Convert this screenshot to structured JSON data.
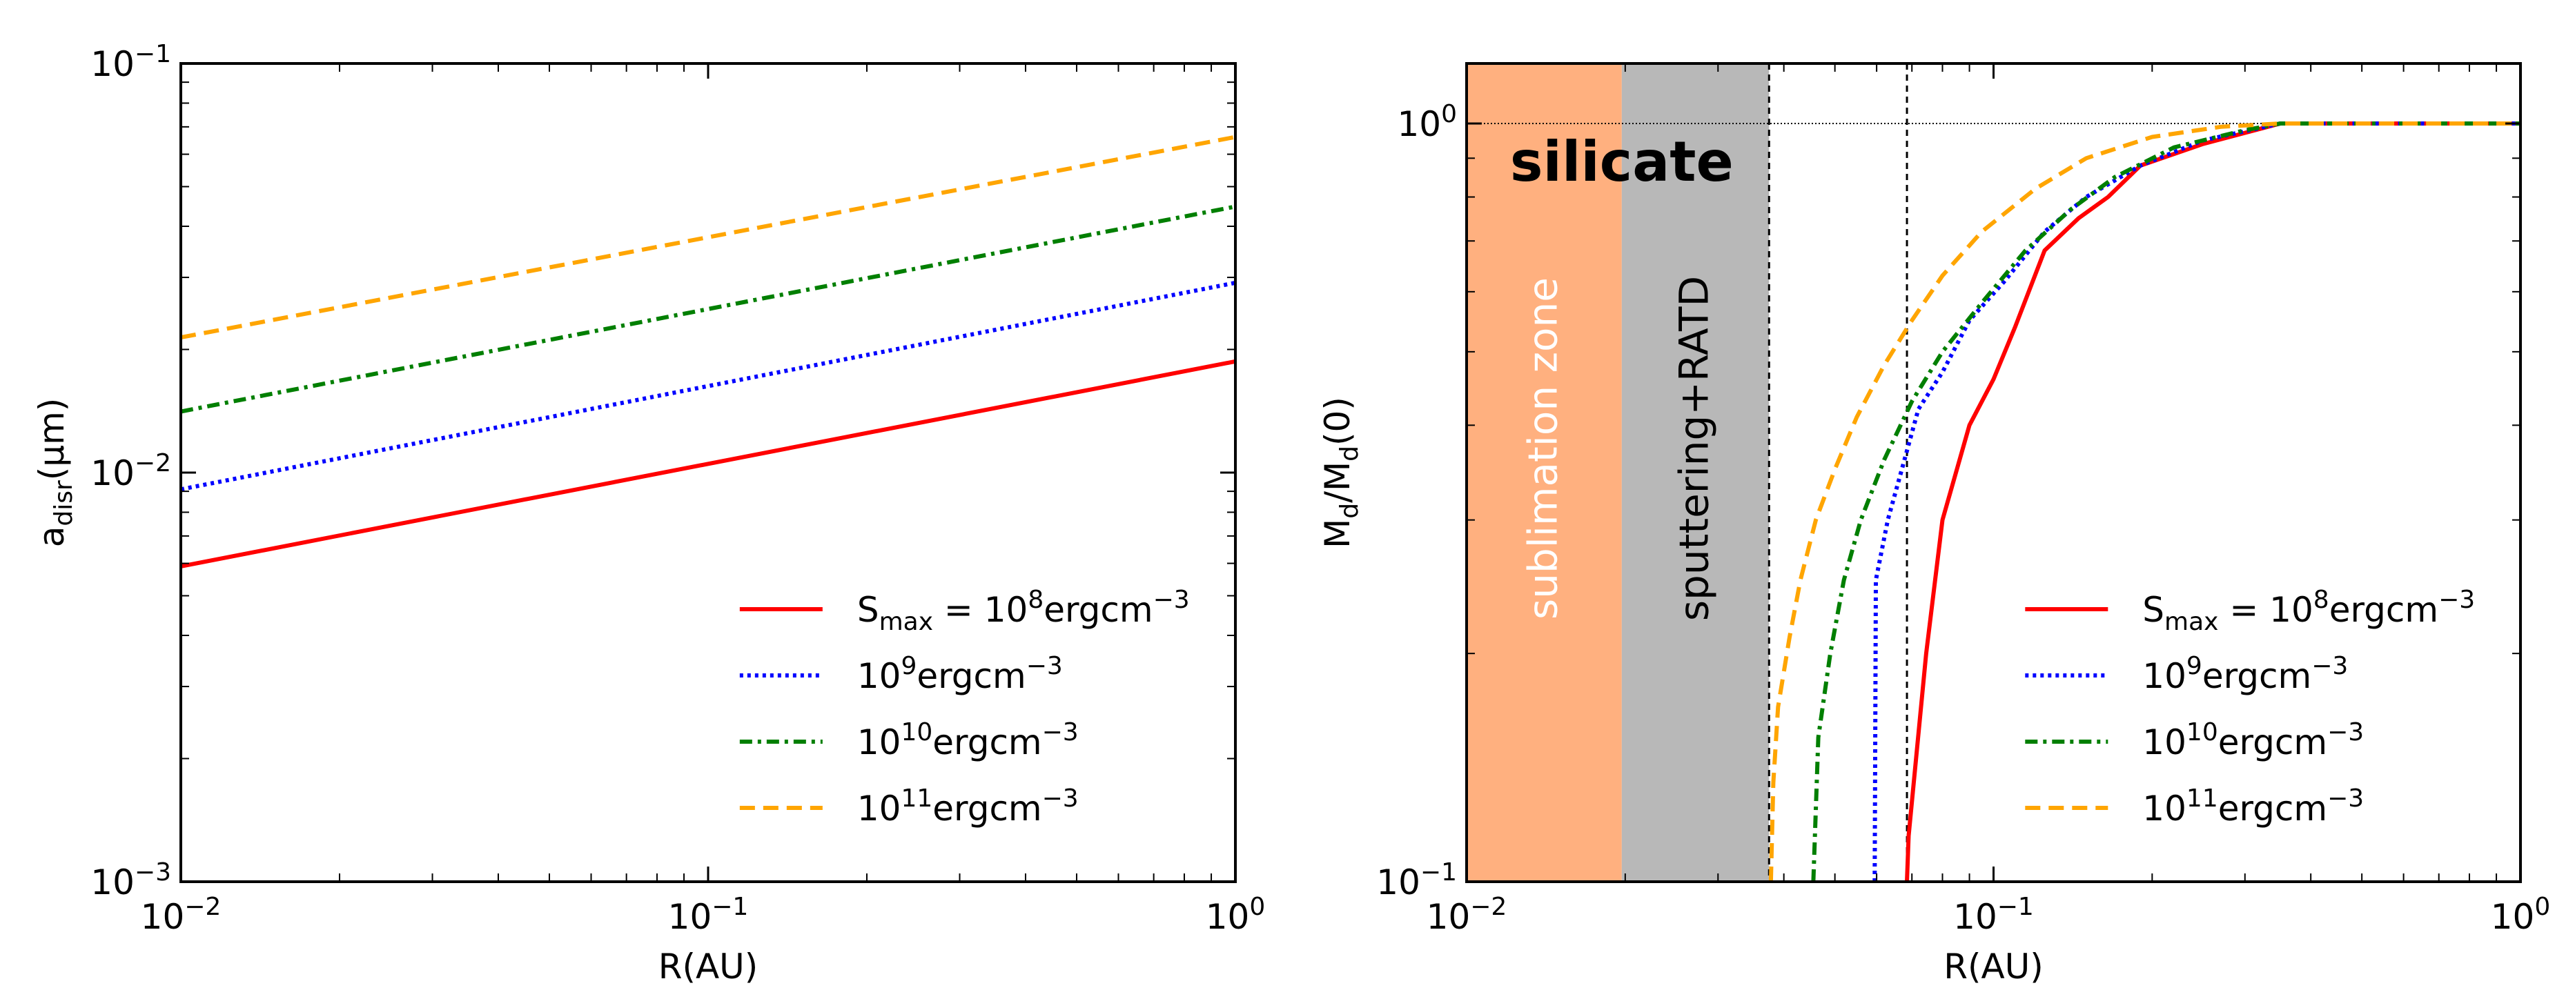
{
  "chart_data": [
    {
      "type": "line",
      "xscale": "log",
      "yscale": "log",
      "xlim": [
        0.01,
        1
      ],
      "ylim": [
        0.001,
        0.1
      ],
      "xlabel": "R(AU)",
      "ylabel": "a_disr(μm)",
      "ylabel_main": "a",
      "ylabel_sub": "disr",
      "ylabel_tail": "(μm)",
      "xticks": [
        {
          "base": "10",
          "exp": "−2",
          "v": 0.01
        },
        {
          "base": "10",
          "exp": "−1",
          "v": 0.1
        },
        {
          "base": "10",
          "exp": "0",
          "v": 1
        }
      ],
      "yticks": [
        {
          "base": "10",
          "exp": "−3",
          "v": 0.001
        },
        {
          "base": "10",
          "exp": "−2",
          "v": 0.01
        },
        {
          "base": "10",
          "exp": "−1",
          "v": 0.1
        }
      ],
      "legend_position": "lower-right",
      "series": [
        {
          "name": "Smax = 10^8 ergcm^-3",
          "label_parts": [
            "S",
            "max",
            " = 10",
            "8",
            "ergcm",
            "−3"
          ],
          "color": "#ff0000",
          "style": "solid",
          "x": [
            0.01,
            1
          ],
          "y": [
            0.0059,
            0.0187
          ]
        },
        {
          "name": "10^9 ergcm^-3",
          "label_parts": [
            "10",
            "9",
            "ergcm",
            "−3"
          ],
          "color": "#0000ff",
          "style": "dotted",
          "x": [
            0.01,
            1
          ],
          "y": [
            0.0091,
            0.0291
          ]
        },
        {
          "name": "10^10 ergcm^-3",
          "label_parts": [
            "10",
            "10",
            "ergcm",
            "−3"
          ],
          "color": "#007f00",
          "style": "dashdot",
          "x": [
            0.01,
            1
          ],
          "y": [
            0.0141,
            0.0447
          ]
        },
        {
          "name": "10^11 ergcm^-3",
          "label_parts": [
            "10",
            "11",
            "ergcm",
            "−3"
          ],
          "color": "#ffa500",
          "style": "dashed",
          "x": [
            0.01,
            1
          ],
          "y": [
            0.0214,
            0.0661
          ]
        }
      ]
    },
    {
      "type": "line",
      "xscale": "log",
      "yscale": "log",
      "xlim": [
        0.01,
        1
      ],
      "ylim": [
        0.1,
        1.2
      ],
      "xlabel": "R(AU)",
      "ylabel": "Md/Md(0)",
      "ylabel_parts": [
        "M",
        "d",
        "/M",
        "d",
        "(0)"
      ],
      "xticks": [
        {
          "base": "10",
          "exp": "−2",
          "v": 0.01
        },
        {
          "base": "10",
          "exp": "−1",
          "v": 0.1
        },
        {
          "base": "10",
          "exp": "0",
          "v": 1
        }
      ],
      "yticks": [
        {
          "base": "10",
          "exp": "−1",
          "v": 0.1
        },
        {
          "base": "10",
          "exp": "0",
          "v": 1
        }
      ],
      "annotations": {
        "material": "silicate",
        "zone1": "sublimation zone",
        "zone2": "sputtering+RATD"
      },
      "zones": [
        {
          "name": "sublimation zone",
          "x0": 0.01,
          "x1": 0.0197,
          "color": "#ffb07f"
        },
        {
          "name": "sputtering+RATD",
          "x0": 0.0197,
          "x1": 0.0375,
          "color": "#b8b8b8"
        }
      ],
      "vlines": [
        0.0375,
        0.0685
      ],
      "hline": 1.0,
      "legend_position": "lower-right",
      "series": [
        {
          "name": "Smax = 10^8 ergcm^-3",
          "label_parts": [
            "S",
            "max",
            " = 10",
            "8",
            "ergcm",
            "−3"
          ],
          "color": "#ff0000",
          "style": "solid",
          "x": [
            0.0685,
            0.069,
            0.0745,
            0.08,
            0.09,
            0.1,
            0.11,
            0.125,
            0.145,
            0.165,
            0.19,
            0.25,
            0.35,
            1.0
          ],
          "y": [
            0.1,
            0.115,
            0.2,
            0.3,
            0.4,
            0.46,
            0.54,
            0.68,
            0.75,
            0.8,
            0.88,
            0.94,
            1.0,
            1.0
          ]
        },
        {
          "name": "10^9 ergcm^-3",
          "label_parts": [
            "10",
            "9",
            "ergcm",
            "−3"
          ],
          "color": "#0000ff",
          "style": "dotted",
          "x": [
            0.0595,
            0.0598,
            0.063,
            0.067,
            0.072,
            0.08,
            0.09,
            0.105,
            0.125,
            0.15,
            0.19,
            0.25,
            0.35,
            1.0
          ],
          "y": [
            0.1,
            0.25,
            0.3,
            0.35,
            0.42,
            0.47,
            0.55,
            0.62,
            0.72,
            0.8,
            0.88,
            0.95,
            1.0,
            1.0
          ]
        },
        {
          "name": "10^10 ergcm^-3",
          "label_parts": [
            "10",
            "10",
            "ergcm",
            "−3"
          ],
          "color": "#007f00",
          "style": "dashdot",
          "x": [
            0.0455,
            0.0465,
            0.049,
            0.052,
            0.056,
            0.062,
            0.07,
            0.08,
            0.095,
            0.115,
            0.14,
            0.17,
            0.22,
            0.3,
            0.35,
            1.0
          ],
          "y": [
            0.1,
            0.155,
            0.2,
            0.25,
            0.3,
            0.36,
            0.43,
            0.5,
            0.58,
            0.68,
            0.77,
            0.85,
            0.93,
            0.98,
            1.0,
            1.0
          ]
        },
        {
          "name": "10^11 ergcm^-3",
          "label_parts": [
            "10",
            "11",
            "ergcm",
            "−3"
          ],
          "color": "#ffa500",
          "style": "dashed",
          "x": [
            0.0378,
            0.0382,
            0.039,
            0.041,
            0.043,
            0.046,
            0.05,
            0.055,
            0.062,
            0.07,
            0.08,
            0.095,
            0.12,
            0.15,
            0.2,
            0.27,
            0.35,
            1.0
          ],
          "y": [
            0.1,
            0.135,
            0.17,
            0.21,
            0.25,
            0.3,
            0.35,
            0.41,
            0.48,
            0.55,
            0.63,
            0.72,
            0.82,
            0.9,
            0.96,
            0.99,
            1.0,
            1.0
          ]
        }
      ]
    }
  ]
}
